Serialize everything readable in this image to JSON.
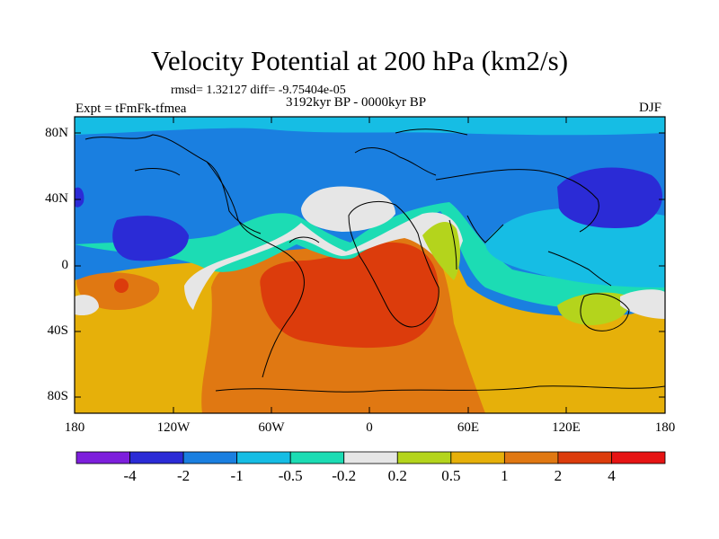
{
  "title": "Velocity Potential at 200 hPa (km2/s)",
  "stats": "rmsd= 1.32127 diff= -9.75404e-05",
  "period": "3192kyr BP - 0000kyr BP",
  "experiment": "Expt = tFmFk-tfmea",
  "season": "DJF",
  "y_axis": [
    "80N",
    "40N",
    "0",
    "40S",
    "80S"
  ],
  "x_axis": [
    "180",
    "120W",
    "60W",
    "0",
    "60E",
    "120E",
    "180"
  ],
  "colorbar": {
    "labels": [
      "-4",
      "-2",
      "-1",
      "-0.5",
      "-0.2",
      "0.2",
      "0.5",
      "1",
      "2",
      "4"
    ],
    "colors": [
      "#7d1fdc",
      "#2b2bd6",
      "#1a7fe0",
      "#16bde4",
      "#1cdcb4",
      "#e6e6e6",
      "#b4d41c",
      "#e6b00a",
      "#e07812",
      "#dc3c0c",
      "#e61414"
    ]
  }
}
